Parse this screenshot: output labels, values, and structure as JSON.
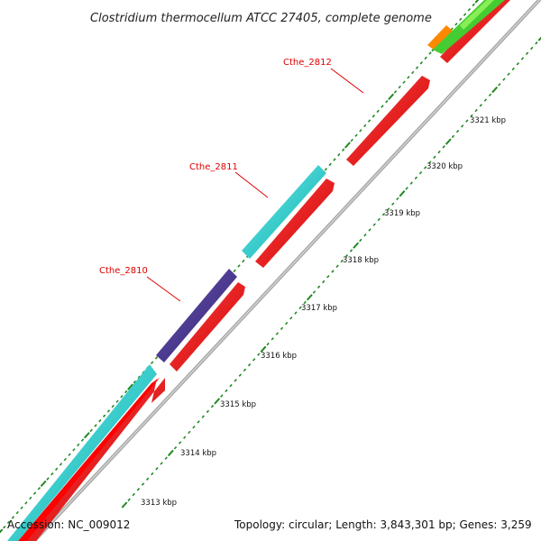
{
  "title": "Clostridium thermocellum ATCC 27405, complete genome",
  "accession": "Accession: NC_009012",
  "topology": "Topology: circular; Length: 3,843,301 bp; Genes: 3,259",
  "colors": {
    "cds_forward": "#ff0000",
    "cds_outer_cyan": "#22cccc",
    "cds_outer_purple": "#443388",
    "cds_outer_green": "#44cc33",
    "cds_outer_orange": "#ff8800",
    "backbone": "#999999",
    "ticks": "#228822",
    "gene_label": "#dd0000"
  },
  "kbp_labels": [
    "3313 kbp",
    "3314 kbp",
    "3315 kbp",
    "3316 kbp",
    "3317 kbp",
    "3318 kbp",
    "3319 kbp",
    "3320 kbp",
    "3321 kbp"
  ],
  "gene_labels": [
    "Cthe_2810",
    "Cthe_2811",
    "Cthe_2812"
  ]
}
